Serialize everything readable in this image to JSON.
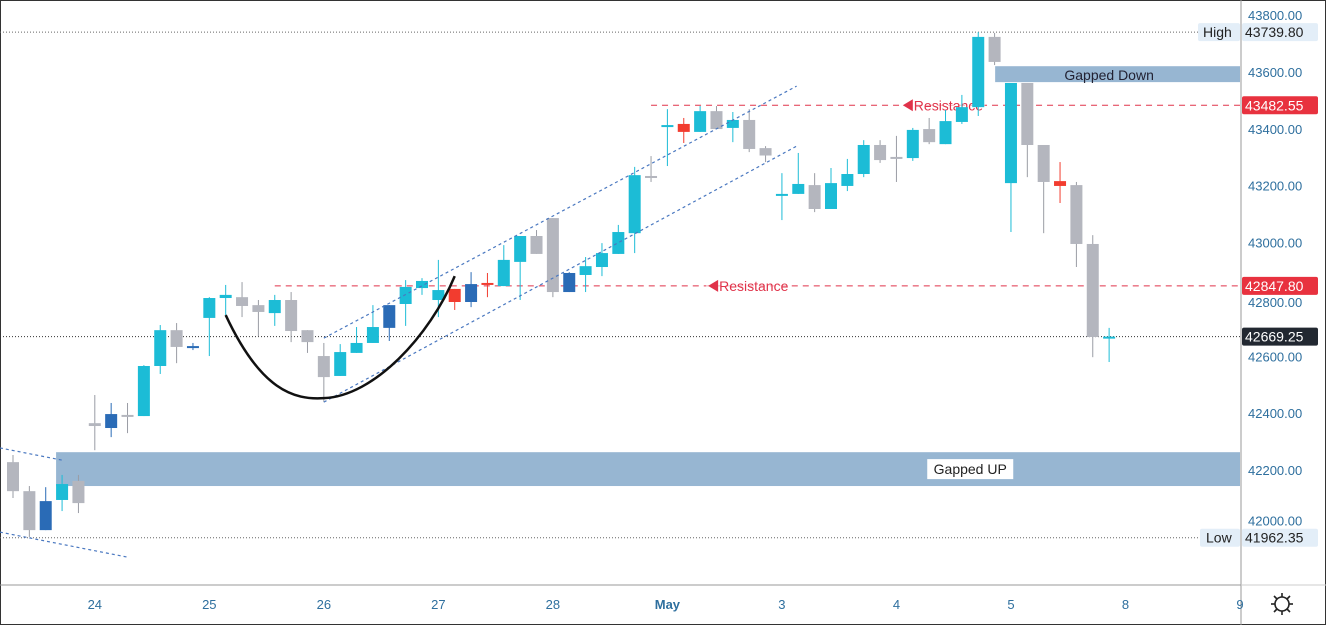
{
  "chart_data": {
    "type": "candlestick",
    "title": "",
    "ylim": [
      41900,
      43830
    ],
    "y_ticks": [
      "43800.00",
      "43600.00",
      "43400.00",
      "43200.00",
      "43000.00",
      "42800.00",
      "42600.00",
      "42400.00",
      "42200.00",
      "42000.00"
    ],
    "x_ticks": [
      {
        "index": 6,
        "label": "24"
      },
      {
        "index": 13,
        "label": "25"
      },
      {
        "index": 20,
        "label": "26"
      },
      {
        "index": 27,
        "label": "27"
      },
      {
        "index": 34,
        "label": "28"
      },
      {
        "index": 41,
        "label": "May",
        "bold": true
      },
      {
        "index": 48,
        "label": "3"
      },
      {
        "index": 55,
        "label": "4"
      },
      {
        "index": 62,
        "label": "5"
      },
      {
        "index": 69,
        "label": "8"
      },
      {
        "index": 76,
        "label": "9"
      }
    ],
    "colors": {
      "c": "#1cbcd6",
      "g": "#b4b6be",
      "b": "#2a6bb6",
      "r": "#f23c2f",
      "zone": "#97b6d2",
      "resistance": "#e0334a",
      "channel": "#4a78c0",
      "last": "#222831"
    },
    "candles": [
      [
        42228,
        42253,
        42102,
        42126,
        "g"
      ],
      [
        42126,
        42144,
        41965,
        41989,
        "g"
      ],
      [
        41989,
        42140,
        41989,
        42091,
        "b"
      ],
      [
        42095,
        42183,
        42056,
        42151,
        "c"
      ],
      [
        42162,
        42183,
        42049,
        42084,
        "g"
      ],
      [
        42365,
        42464,
        42270,
        42355,
        "g"
      ],
      [
        42348,
        42436,
        42316,
        42397,
        "b"
      ],
      [
        42394,
        42436,
        42330,
        42390,
        "g"
      ],
      [
        42390,
        42569,
        42390,
        42566,
        "c"
      ],
      [
        42566,
        42710,
        42538,
        42692,
        "c"
      ],
      [
        42692,
        42717,
        42576,
        42633,
        "g"
      ],
      [
        42633,
        42647,
        42622,
        42636,
        "b"
      ],
      [
        42735,
        42808,
        42601,
        42805,
        "c"
      ],
      [
        42805,
        42851,
        42745,
        42816,
        "c"
      ],
      [
        42808,
        42861,
        42738,
        42777,
        "g"
      ],
      [
        42780,
        42798,
        42671,
        42756,
        "g"
      ],
      [
        42752,
        42816,
        42707,
        42798,
        "c"
      ],
      [
        42798,
        42826,
        42650,
        42689,
        "g"
      ],
      [
        42692,
        42692,
        42612,
        42650,
        "g"
      ],
      [
        42601,
        42647,
        42439,
        42527,
        "g"
      ],
      [
        42531,
        42643,
        42531,
        42615,
        "c"
      ],
      [
        42612,
        42703,
        42612,
        42647,
        "c"
      ],
      [
        42647,
        42780,
        42647,
        42703,
        "c"
      ],
      [
        42700,
        42780,
        42654,
        42780,
        "b"
      ],
      [
        42784,
        42868,
        42707,
        42844,
        "c"
      ],
      [
        42840,
        42875,
        42816,
        42865,
        "c"
      ],
      [
        42798,
        42939,
        42738,
        42833,
        "c"
      ],
      [
        42837,
        42837,
        42763,
        42791,
        "r"
      ],
      [
        42791,
        42896,
        42773,
        42854,
        "b"
      ],
      [
        42858,
        42893,
        42808,
        42851,
        "r"
      ],
      [
        42847,
        42991,
        42847,
        42939,
        "c"
      ],
      [
        42932,
        43023,
        42798,
        43023,
        "c"
      ],
      [
        43023,
        43044,
        42960,
        42960,
        "g"
      ],
      [
        43086,
        43086,
        42808,
        42826,
        "g"
      ],
      [
        42826,
        42896,
        42826,
        42893,
        "b"
      ],
      [
        42886,
        42949,
        42826,
        42917,
        "c"
      ],
      [
        42914,
        42998,
        42882,
        42963,
        "c"
      ],
      [
        42960,
        43062,
        42960,
        43037,
        "c"
      ],
      [
        43033,
        43266,
        42963,
        43237,
        "c"
      ],
      [
        43234,
        43304,
        43213,
        43227,
        "g"
      ],
      [
        43410,
        43469,
        43269,
        43413,
        "c"
      ],
      [
        43417,
        43438,
        43350,
        43389,
        "r"
      ],
      [
        43389,
        43480,
        43389,
        43462,
        "c"
      ],
      [
        43462,
        43480,
        43399,
        43399,
        "g"
      ],
      [
        43403,
        43459,
        43353,
        43431,
        "c"
      ],
      [
        43431,
        43469,
        43318,
        43329,
        "g"
      ],
      [
        43332,
        43339,
        43283,
        43306,
        "g"
      ],
      [
        43167,
        43244,
        43079,
        43171,
        "c"
      ],
      [
        43171,
        43315,
        43171,
        43206,
        "c"
      ],
      [
        43202,
        43244,
        43107,
        43118,
        "g"
      ],
      [
        43118,
        43262,
        43118,
        43209,
        "c"
      ],
      [
        43199,
        43294,
        43181,
        43241,
        "c"
      ],
      [
        43241,
        43360,
        43230,
        43343,
        "c"
      ],
      [
        43343,
        43360,
        43280,
        43290,
        "g"
      ],
      [
        43297,
        43375,
        43213,
        43301,
        "g"
      ],
      [
        43297,
        43403,
        43287,
        43396,
        "c"
      ],
      [
        43399,
        43438,
        43346,
        43353,
        "g"
      ],
      [
        43346,
        43466,
        43346,
        43427,
        "c"
      ],
      [
        43424,
        43519,
        43417,
        43476,
        "c"
      ],
      [
        43476,
        43739.8,
        43445,
        43723,
        "c"
      ],
      [
        43723,
        43737,
        43624,
        43635,
        "g"
      ],
      [
        43209,
        43561,
        43037,
        43561,
        "c"
      ],
      [
        43561,
        43561,
        43230,
        43343,
        "g"
      ],
      [
        43343,
        43343,
        43033,
        43213,
        "g"
      ],
      [
        43216,
        43283,
        43139,
        43199,
        "r"
      ],
      [
        43202,
        43213,
        42914,
        42995,
        "g"
      ],
      [
        42995,
        43026,
        42597,
        42668,
        "g"
      ],
      [
        42664,
        42700,
        42580,
        42669.25,
        "c"
      ]
    ],
    "zones": [
      {
        "label": "Gapped UP",
        "from_index": 4,
        "top": 42263,
        "bottom": 42144,
        "label_index": 60
      },
      {
        "label": "Gapped Down",
        "from_index": 61.4,
        "top": 43620,
        "bottom": 43564,
        "label_index": 68
      }
    ],
    "resistance_lines": [
      {
        "label": "Resistance",
        "price": 43482.55,
        "price_label": "43482.55",
        "from_index": 40,
        "label_index": 56
      },
      {
        "label": "Resistance",
        "price": 42847.8,
        "price_label": "42847.80",
        "from_index": 17,
        "label_index": 44.1
      }
    ],
    "channels": [
      {
        "points": [
          [
            20,
            42664
          ],
          [
            48.9,
            43550
          ]
        ]
      },
      {
        "points": [
          [
            20,
            42439
          ],
          [
            48.9,
            43339
          ]
        ]
      },
      {
        "points": [
          [
            0.2,
            42278
          ],
          [
            4,
            42235
          ]
        ]
      },
      {
        "points": [
          [
            0.2,
            41982
          ],
          [
            8,
            41894
          ]
        ]
      }
    ],
    "cup_curve": {
      "start": [
        14,
        42745
      ],
      "bottom": [
        20,
        42453
      ],
      "end": [
        28,
        42882
      ]
    },
    "high": {
      "label": "High",
      "value": 43739.8,
      "value_label": "43739.80"
    },
    "low": {
      "label": "Low",
      "value": 41962.35,
      "value_label": "41962.35"
    },
    "last": {
      "value": 42669.25,
      "value_label": "42669.25"
    }
  }
}
